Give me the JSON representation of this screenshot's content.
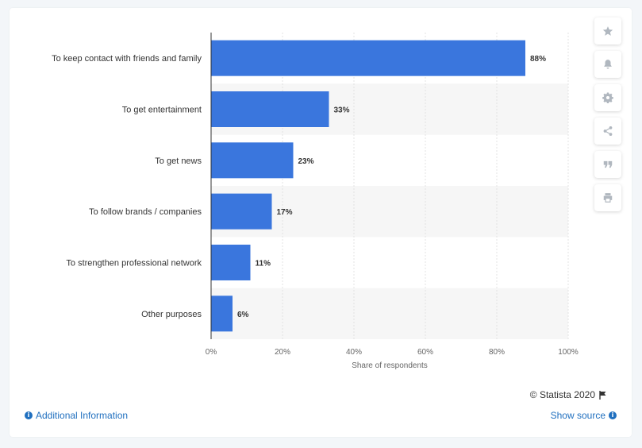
{
  "chart_data": {
    "type": "bar",
    "orientation": "horizontal",
    "categories": [
      "To keep contact with friends and family",
      "To get entertainment",
      "To get news",
      "To follow brands / companies",
      "To strengthen professional network",
      "Other purposes"
    ],
    "values": [
      88,
      33,
      23,
      17,
      11,
      6
    ],
    "data_labels": [
      "88%",
      "33%",
      "23%",
      "17%",
      "11%",
      "6%"
    ],
    "xlabel": "Share of respondents",
    "ylabel": "",
    "xlim": [
      0,
      100
    ],
    "x_ticks": [
      0,
      20,
      40,
      60,
      80,
      100
    ],
    "x_tick_labels": [
      "0%",
      "20%",
      "40%",
      "60%",
      "80%",
      "100%"
    ],
    "bar_color": "#3a76dd",
    "grid": true,
    "legend": "none"
  },
  "sidebar": {
    "buttons": [
      {
        "name": "star-icon",
        "label": "Favorite"
      },
      {
        "name": "bell-icon",
        "label": "Notifications"
      },
      {
        "name": "gear-icon",
        "label": "Settings"
      },
      {
        "name": "share-icon",
        "label": "Share"
      },
      {
        "name": "quote-icon",
        "label": "Cite"
      },
      {
        "name": "print-icon",
        "label": "Print"
      }
    ]
  },
  "footer": {
    "copyright": "© Statista 2020",
    "additional_info": "Additional Information",
    "show_source": "Show source"
  },
  "colors": {
    "link": "#1f6fbf",
    "icon": "#b0b7bf"
  }
}
